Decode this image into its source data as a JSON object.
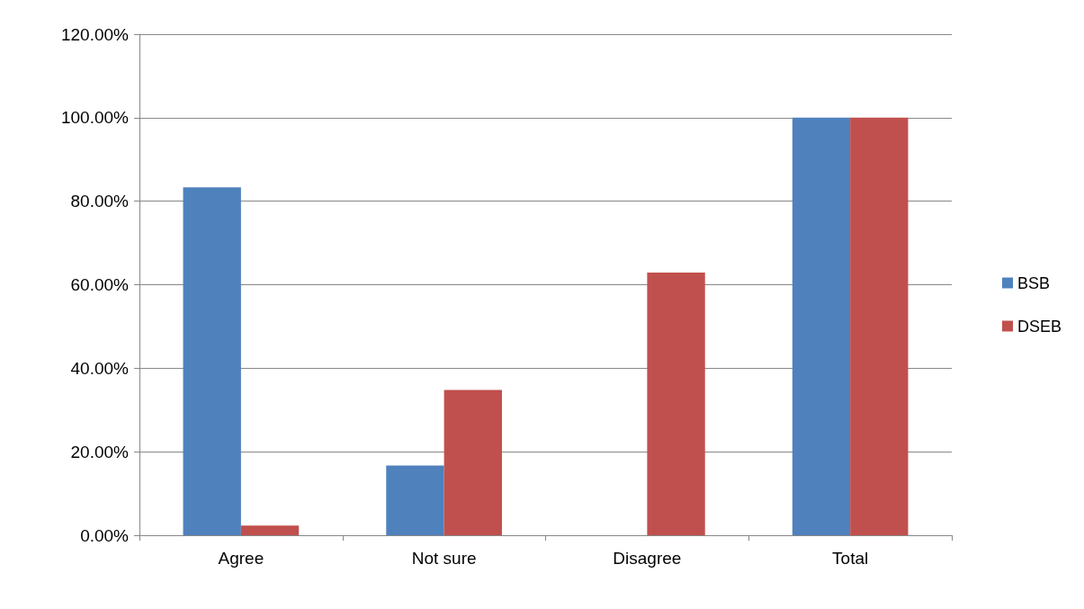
{
  "chart_data": {
    "type": "bar",
    "categories": [
      "Agree",
      "Not sure",
      "Disagree",
      "Total"
    ],
    "series": [
      {
        "name": "BSB",
        "color": "#4f81bd",
        "values": [
          83.3,
          16.7,
          0,
          100
        ]
      },
      {
        "name": "DSEB",
        "color": "#c0504d",
        "values": [
          2.3,
          34.8,
          62.9,
          100
        ]
      }
    ],
    "ylim": [
      0,
      120
    ],
    "yticks": [
      {
        "value": 0,
        "label": "0.00%"
      },
      {
        "value": 20,
        "label": "20.00%"
      },
      {
        "value": 40,
        "label": "40.00%"
      },
      {
        "value": 60,
        "label": "60.00%"
      },
      {
        "value": 80,
        "label": "80.00%"
      },
      {
        "value": 100,
        "label": "100.00%"
      },
      {
        "value": 120,
        "label": "120.00%"
      }
    ],
    "grid": "y",
    "legend": "right"
  }
}
